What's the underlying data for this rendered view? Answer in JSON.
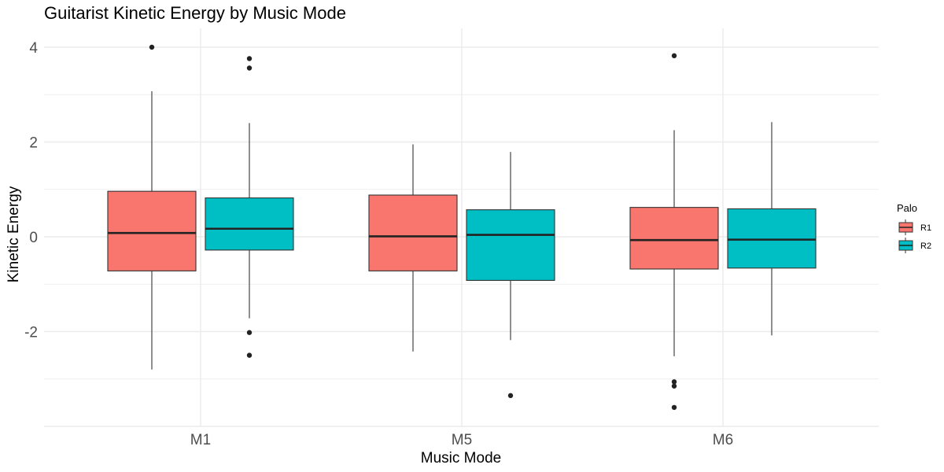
{
  "chart_data": {
    "type": "boxplot",
    "title": "Guitarist Kinetic Energy by Music Mode",
    "xlabel": "Music Mode",
    "ylabel": "Kinetic Energy",
    "categories": [
      "M1",
      "M5",
      "M6"
    ],
    "ylim": [
      -4.0,
      4.3
    ],
    "yticks": [
      4,
      2,
      0,
      -2
    ],
    "ytick_labels": [
      "4",
      "2",
      "0",
      "-2"
    ],
    "grid": true,
    "legend": {
      "title": "Palo",
      "position": "right",
      "entries": [
        {
          "label": "R1",
          "color": "#F8766D"
        },
        {
          "label": "R2",
          "color": "#00BFC4"
        }
      ]
    },
    "series": [
      {
        "name": "R1",
        "color": "#F8766D",
        "boxes": [
          {
            "category": "M1",
            "whisker_low": -2.8,
            "q1": -0.72,
            "median": 0.08,
            "q3": 0.96,
            "whisker_high": 3.07,
            "outliers": [
              4.0
            ]
          },
          {
            "category": "M5",
            "whisker_low": -2.42,
            "q1": -0.72,
            "median": 0.01,
            "q3": 0.88,
            "whisker_high": 1.95,
            "outliers": []
          },
          {
            "category": "M6",
            "whisker_low": -2.52,
            "q1": -0.68,
            "median": -0.07,
            "q3": 0.62,
            "whisker_high": 2.25,
            "outliers": [
              3.82,
              -3.06,
              -3.15,
              -3.6
            ]
          }
        ]
      },
      {
        "name": "R2",
        "color": "#00BFC4",
        "boxes": [
          {
            "category": "M1",
            "whisker_low": -1.72,
            "q1": -0.28,
            "median": 0.17,
            "q3": 0.82,
            "whisker_high": 2.4,
            "outliers": [
              3.76,
              3.56,
              -2.02,
              -2.5
            ]
          },
          {
            "category": "M5",
            "whisker_low": -2.18,
            "q1": -0.92,
            "median": 0.04,
            "q3": 0.57,
            "whisker_high": 1.79,
            "outliers": [
              -3.35
            ]
          },
          {
            "category": "M6",
            "whisker_low": -2.08,
            "q1": -0.66,
            "median": -0.06,
            "q3": 0.59,
            "whisker_high": 2.42,
            "outliers": []
          }
        ]
      }
    ]
  }
}
